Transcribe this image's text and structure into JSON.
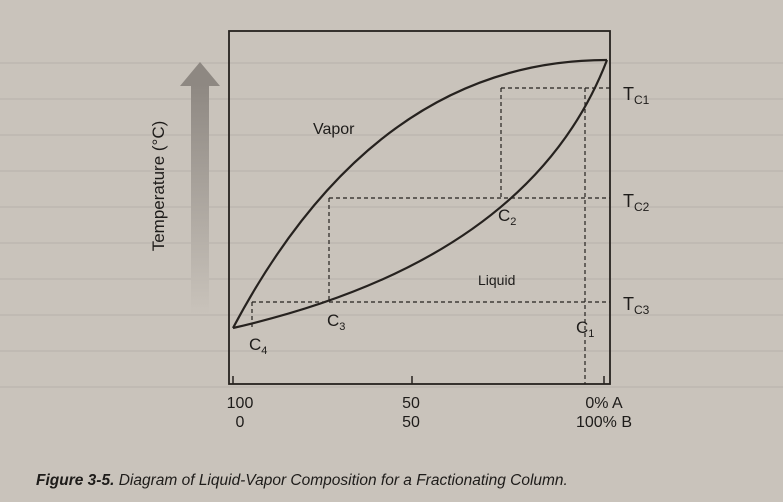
{
  "diagram": {
    "y_axis_label": "Temperature (°C)",
    "regions": {
      "vapor": "Vapor",
      "liquid": "Liquid"
    },
    "temperature_levels": [
      {
        "base": "T",
        "sub": "C1"
      },
      {
        "base": "T",
        "sub": "C2"
      },
      {
        "base": "T",
        "sub": "C3"
      }
    ],
    "composition_points": [
      {
        "base": "C",
        "sub": "1"
      },
      {
        "base": "C",
        "sub": "2"
      },
      {
        "base": "C",
        "sub": "3"
      },
      {
        "base": "C",
        "sub": "4"
      }
    ],
    "x_ticks": [
      {
        "top": "100",
        "bottom": "0"
      },
      {
        "top": "50",
        "bottom": "50"
      },
      {
        "top": "0% A",
        "bottom": "100% B"
      }
    ],
    "colors": {
      "curve": "#26221f",
      "frame": "#26221f",
      "arrow": "#8e8882"
    }
  },
  "caption": {
    "number": "Figure 3-5.",
    "text": "Diagram of Liquid-Vapor Composition for a Fractionating Column."
  }
}
